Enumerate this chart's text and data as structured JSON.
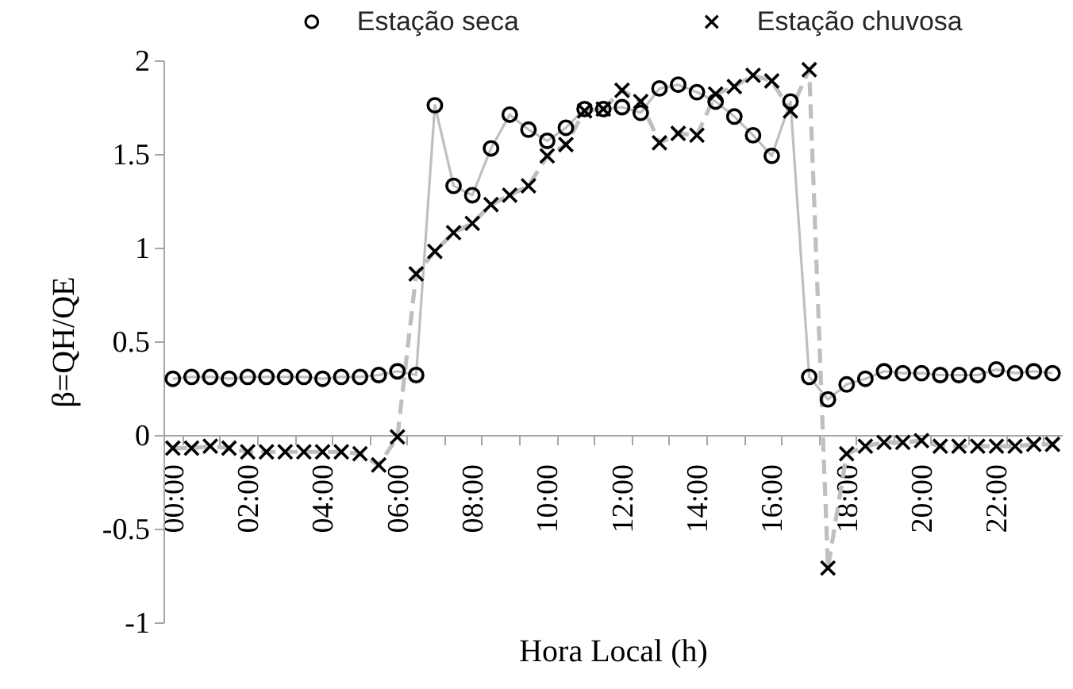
{
  "chart_data": {
    "type": "line",
    "xlabel": "Hora Local (h)",
    "ylabel": "β=QH/QE",
    "legend": "top",
    "categories": [
      "00:00",
      null,
      null,
      null,
      "02:00",
      null,
      null,
      null,
      "04:00",
      null,
      null,
      null,
      "06:00",
      null,
      null,
      null,
      "08:00",
      null,
      null,
      null,
      "10:00",
      null,
      null,
      null,
      "12:00",
      null,
      null,
      null,
      "14:00",
      null,
      null,
      null,
      "16:00",
      null,
      null,
      null,
      "18:00",
      null,
      null,
      null,
      "20:00",
      null,
      null,
      null,
      "22:00",
      null,
      null,
      null
    ],
    "ylim": [
      -1,
      2
    ],
    "yticks": [
      -1,
      -0.5,
      0,
      0.5,
      1,
      1.5,
      2
    ],
    "series": [
      {
        "name": "Estação seca",
        "color": "#000000",
        "marker": "circle",
        "line_style": "solid",
        "values": [
          0.3,
          0.31,
          0.31,
          0.3,
          0.31,
          0.31,
          0.31,
          0.31,
          0.3,
          0.31,
          0.31,
          0.32,
          0.34,
          0.32,
          1.76,
          1.33,
          1.28,
          1.53,
          1.71,
          1.63,
          1.57,
          1.64,
          1.74,
          1.74,
          1.75,
          1.72,
          1.85,
          1.87,
          1.83,
          1.78,
          1.7,
          1.6,
          1.49,
          1.78,
          0.31,
          0.19,
          0.27,
          0.3,
          0.34,
          0.33,
          0.33,
          0.32,
          0.32,
          0.32,
          0.35,
          0.33,
          0.34,
          0.33
        ]
      },
      {
        "name": "Estação chuvosa",
        "color": "#000000",
        "marker": "cross",
        "line_style": "dashed",
        "values": [
          -0.07,
          -0.07,
          -0.06,
          -0.07,
          -0.09,
          -0.09,
          -0.09,
          -0.09,
          -0.09,
          -0.09,
          -0.1,
          -0.16,
          -0.01,
          0.86,
          0.98,
          1.08,
          1.13,
          1.23,
          1.28,
          1.33,
          1.49,
          1.55,
          1.73,
          1.74,
          1.84,
          1.78,
          1.56,
          1.61,
          1.6,
          1.82,
          1.86,
          1.92,
          1.89,
          1.73,
          1.95,
          -0.71,
          -0.1,
          -0.06,
          -0.04,
          -0.04,
          -0.03,
          -0.06,
          -0.06,
          -0.06,
          -0.06,
          -0.06,
          -0.05,
          -0.05
        ]
      }
    ]
  }
}
